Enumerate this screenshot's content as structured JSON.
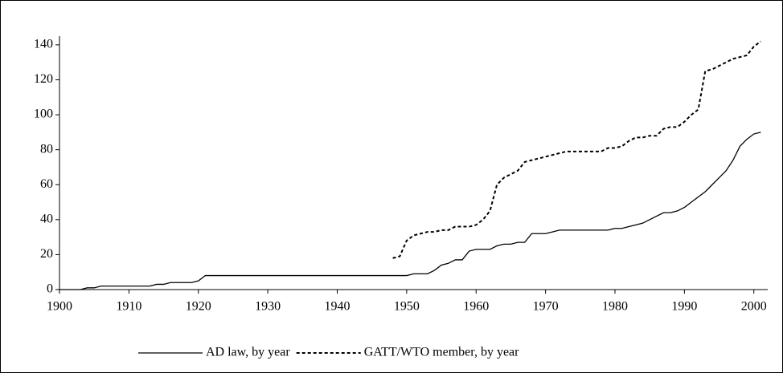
{
  "chart_data": {
    "type": "line",
    "x": [
      1900,
      1901,
      1902,
      1903,
      1904,
      1905,
      1906,
      1907,
      1908,
      1909,
      1910,
      1911,
      1912,
      1913,
      1914,
      1915,
      1916,
      1917,
      1918,
      1919,
      1920,
      1921,
      1922,
      1923,
      1924,
      1925,
      1926,
      1927,
      1928,
      1929,
      1930,
      1931,
      1932,
      1933,
      1934,
      1935,
      1936,
      1937,
      1938,
      1939,
      1940,
      1941,
      1942,
      1943,
      1944,
      1945,
      1946,
      1947,
      1948,
      1949,
      1950,
      1951,
      1952,
      1953,
      1954,
      1955,
      1956,
      1957,
      1958,
      1959,
      1960,
      1961,
      1962,
      1963,
      1964,
      1965,
      1966,
      1967,
      1968,
      1969,
      1970,
      1971,
      1972,
      1973,
      1974,
      1975,
      1976,
      1977,
      1978,
      1979,
      1980,
      1981,
      1982,
      1983,
      1984,
      1985,
      1986,
      1987,
      1988,
      1989,
      1990,
      1991,
      1992,
      1993,
      1994,
      1995,
      1996,
      1997,
      1998,
      1999,
      2000,
      2001
    ],
    "series": [
      {
        "name": "AD law, by year",
        "color": "#000000",
        "dash": "solid",
        "values": [
          0,
          0,
          0,
          0,
          1,
          1,
          2,
          2,
          2,
          2,
          2,
          2,
          2,
          2,
          3,
          3,
          4,
          4,
          4,
          4,
          5,
          8,
          8,
          8,
          8,
          8,
          8,
          8,
          8,
          8,
          8,
          8,
          8,
          8,
          8,
          8,
          8,
          8,
          8,
          8,
          8,
          8,
          8,
          8,
          8,
          8,
          8,
          8,
          8,
          8,
          8,
          9,
          9,
          9,
          11,
          14,
          15,
          17,
          17,
          22,
          23,
          23,
          23,
          25,
          26,
          26,
          27,
          27,
          32,
          32,
          32,
          33,
          34,
          34,
          34,
          34,
          34,
          34,
          34,
          34,
          35,
          35,
          36,
          37,
          38,
          40,
          42,
          44,
          44,
          45,
          47,
          50,
          53,
          56,
          60,
          64,
          68,
          74,
          82,
          86,
          89,
          90
        ]
      },
      {
        "name": "GATT/WTO member, by year",
        "color": "#000000",
        "dash": "dashed",
        "values": [
          null,
          null,
          null,
          null,
          null,
          null,
          null,
          null,
          null,
          null,
          null,
          null,
          null,
          null,
          null,
          null,
          null,
          null,
          null,
          null,
          null,
          null,
          null,
          null,
          null,
          null,
          null,
          null,
          null,
          null,
          null,
          null,
          null,
          null,
          null,
          null,
          null,
          null,
          null,
          null,
          null,
          null,
          null,
          null,
          null,
          null,
          null,
          null,
          18,
          19,
          28,
          31,
          32,
          33,
          33,
          34,
          34,
          36,
          36,
          36,
          37,
          40,
          45,
          60,
          64,
          66,
          68,
          73,
          74,
          75,
          76,
          77,
          78,
          79,
          79,
          79,
          79,
          79,
          79,
          81,
          81,
          82,
          85,
          87,
          87,
          88,
          88,
          92,
          93,
          93,
          96,
          100,
          103,
          125,
          126,
          128,
          130,
          132,
          133,
          134,
          139,
          142
        ]
      }
    ],
    "xlim": [
      1900,
      2002
    ],
    "xticks": [
      1900,
      1910,
      1920,
      1930,
      1940,
      1950,
      1960,
      1970,
      1980,
      1990,
      2000
    ],
    "ylim": [
      0,
      145
    ],
    "yticks": [
      0,
      20,
      40,
      60,
      80,
      100,
      120,
      140
    ],
    "grid": false,
    "legend": "bottom"
  }
}
